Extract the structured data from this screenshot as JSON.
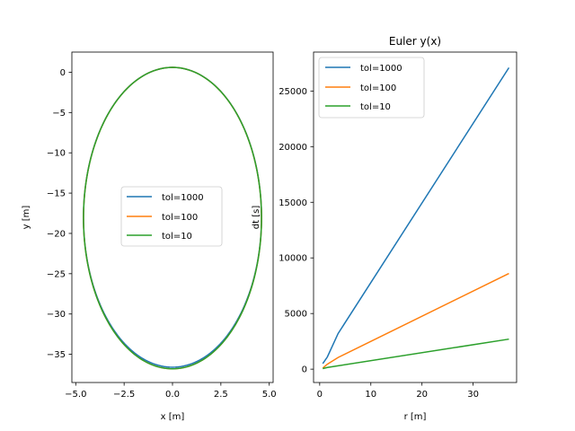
{
  "chart_data": [
    {
      "type": "line",
      "title": "",
      "xlabel": "x [m]",
      "ylabel": "y [m]",
      "xlim": [
        -5.2,
        5.2
      ],
      "ylim": [
        -38.5,
        2.5
      ],
      "xticks": [
        -5.0,
        -2.5,
        0.0,
        2.5,
        5.0
      ],
      "xtick_labels": [
        "−5.0",
        "−2.5",
        "0.0",
        "2.5",
        "5.0"
      ],
      "yticks": [
        0,
        -5,
        -10,
        -15,
        -20,
        -25,
        -30,
        -35
      ],
      "ytick_labels": [
        "0",
        "−5",
        "−10",
        "−15",
        "−20",
        "−25",
        "−30",
        "−35"
      ],
      "grid": false,
      "legend_position": "center",
      "series": [
        {
          "name": "tol=1000",
          "color": "#1f77b4",
          "shape": "ellipse",
          "center": [
            0.0,
            -18.0
          ],
          "semi_axis_x": 4.6,
          "semi_axis_y": 18.6
        },
        {
          "name": "tol=100",
          "color": "#ff7f0e",
          "shape": "ellipse",
          "center": [
            0.0,
            -18.1
          ],
          "semi_axis_x": 4.6,
          "semi_axis_y": 18.7
        },
        {
          "name": "tol=10",
          "color": "#2ca02c",
          "shape": "ellipse",
          "center": [
            0.0,
            -18.1
          ],
          "semi_axis_x": 4.6,
          "semi_axis_y": 18.7
        }
      ]
    },
    {
      "type": "line",
      "title": "Euler y(x)",
      "xlabel": "r [m]",
      "ylabel": "dt [s]",
      "xlim": [
        -1.2,
        38.5
      ],
      "ylim": [
        -1200,
        28500
      ],
      "xticks": [
        0,
        10,
        20,
        30
      ],
      "xtick_labels": [
        "0",
        "10",
        "20",
        "30"
      ],
      "yticks": [
        0,
        5000,
        10000,
        15000,
        20000,
        25000
      ],
      "ytick_labels": [
        "0",
        "5000",
        "10000",
        "15000",
        "20000",
        "25000"
      ],
      "grid": false,
      "legend_position": "upper left",
      "series": [
        {
          "name": "tol=1000",
          "color": "#1f77b4",
          "x": [
            0.6,
            1.5,
            3.6,
            37.0
          ],
          "y": [
            500,
            1100,
            3200,
            27100
          ]
        },
        {
          "name": "tol=100",
          "color": "#ff7f0e",
          "x": [
            0.6,
            1.5,
            3.6,
            37.0
          ],
          "y": [
            100,
            450,
            1050,
            8600
          ]
        },
        {
          "name": "tol=10",
          "color": "#2ca02c",
          "x": [
            0.6,
            1.5,
            3.6,
            37.0
          ],
          "y": [
            50,
            150,
            300,
            2700
          ]
        }
      ]
    }
  ]
}
